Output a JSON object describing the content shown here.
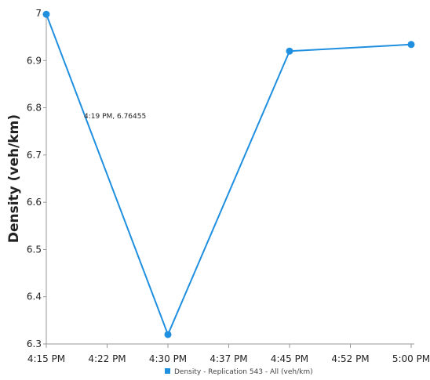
{
  "chart_data": {
    "type": "line",
    "title": "",
    "xlabel": "",
    "ylabel": "Density (veh/km)",
    "x_ticks": [
      "4:15 PM",
      "4:22 PM",
      "4:30 PM",
      "4:37 PM",
      "4:45 PM",
      "4:52 PM",
      "5:00 PM"
    ],
    "y_ticks": [
      "6.3",
      "6.4",
      "6.5",
      "6.6",
      "6.7",
      "6.8",
      "6.9",
      "7"
    ],
    "ylim": [
      6.3,
      7.0
    ],
    "grid": false,
    "legend_position": "bottom",
    "series": [
      {
        "name": "Density - Replication 543 - All (veh/km)",
        "color": "#1f8fe0",
        "x": [
          "4:15 PM",
          "4:30 PM",
          "4:45 PM",
          "5:00 PM"
        ],
        "values": [
          6.998,
          6.32,
          6.92,
          6.934
        ]
      }
    ],
    "annotation": {
      "text": "4:19 PM, 6.76455"
    }
  }
}
